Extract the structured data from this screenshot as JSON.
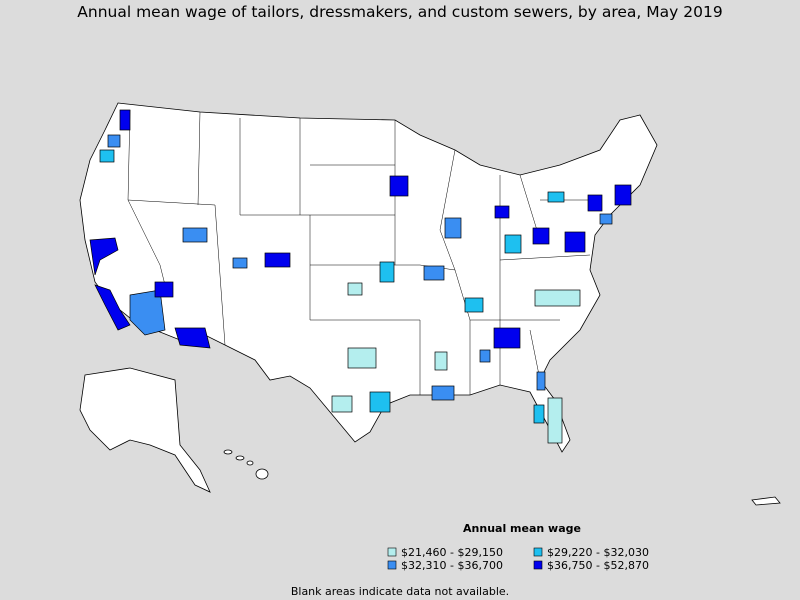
{
  "title": "Annual mean wage of tailors, dressmakers, and custom sewers, by area, May 2019",
  "legend": {
    "title": "Annual mean wage",
    "items": [
      {
        "label": "$21,460 - $29,150",
        "color": "#b4eeee"
      },
      {
        "label": "$29,220 - $32,030",
        "color": "#1ec0f0"
      },
      {
        "label": "$32,310 - $36,700",
        "color": "#3a8ef2"
      },
      {
        "label": "$36,750 - $52,870",
        "color": "#0000ee"
      }
    ]
  },
  "footnote": "Blank areas indicate data not available."
}
